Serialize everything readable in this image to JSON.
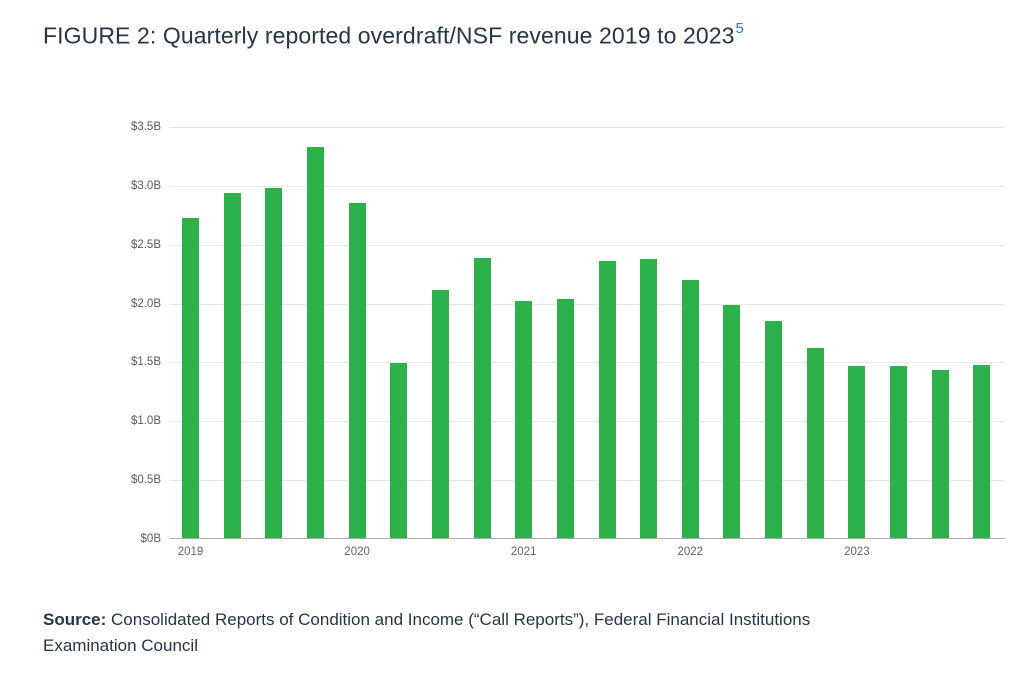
{
  "figure": {
    "title": "FIGURE 2: Quarterly reported overdraft/NSF revenue 2019 to 2023",
    "footnote_marker": "5"
  },
  "source": {
    "label": "Source:",
    "text": " Consolidated Reports of Condition and Income (“Call Reports”), Federal Financial Institutions Examination Council"
  },
  "colors": {
    "bar_green": "#2db24b",
    "title_text": "#253645",
    "footnote_blue": "#2a7fd1",
    "gridline": "#e8e8e8",
    "axis_baseline": "#ababab",
    "tick_text": "#5a5a5a"
  },
  "chart_data": {
    "type": "bar",
    "title": "FIGURE 2: Quarterly reported overdraft/NSF revenue 2019 to 2023",
    "xlabel": "",
    "ylabel": "",
    "unit": "billions USD",
    "ylim": [
      0,
      3.5
    ],
    "grid": "horizontal",
    "legend": "none",
    "bar_color": "#2db24b",
    "yticks": [
      0,
      0.5,
      1.0,
      1.5,
      2.0,
      2.5,
      3.0,
      3.5
    ],
    "ytick_labels": [
      "$0B",
      "$0.5B",
      "$1.0B",
      "$1.5B",
      "$2.0B",
      "$2.5B",
      "$3.0B",
      "$3.5B"
    ],
    "x": [
      "2019 Q1",
      "2019 Q2",
      "2019 Q3",
      "2019 Q4",
      "2020 Q1",
      "2020 Q2",
      "2020 Q3",
      "2020 Q4",
      "2021 Q1",
      "2021 Q2",
      "2021 Q3",
      "2021 Q4",
      "2022 Q1",
      "2022 Q2",
      "2022 Q3",
      "2022 Q4",
      "2023 Q1",
      "2023 Q2",
      "2023 Q3",
      "2023 Q4"
    ],
    "values": [
      2.72,
      2.93,
      2.97,
      3.32,
      2.85,
      1.49,
      2.11,
      2.38,
      2.01,
      2.03,
      2.35,
      2.37,
      2.19,
      1.98,
      1.84,
      1.61,
      1.46,
      1.46,
      1.43,
      1.47
    ],
    "xtick_years": [
      "2019",
      "2020",
      "2021",
      "2022",
      "2023"
    ],
    "xtick_year_positions_quarter_index": [
      0,
      4,
      8,
      12,
      16
    ]
  }
}
